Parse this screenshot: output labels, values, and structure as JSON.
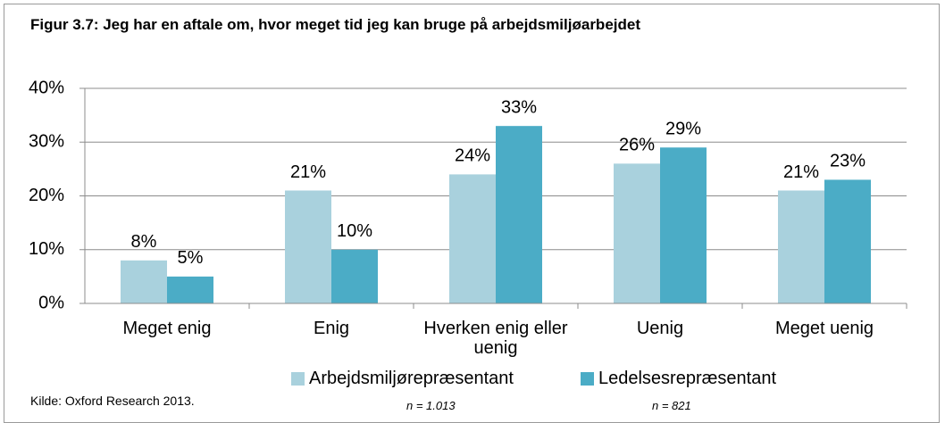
{
  "chart_data": {
    "type": "bar",
    "title": "Figur 3.7: Jeg har en aftale om, hvor meget tid jeg kan bruge på arbejdsmiljøarbejdet",
    "categories": [
      "Meget enig",
      "Enig",
      "Hverken enig eller uenig",
      "Uenig",
      "Meget uenig"
    ],
    "series": [
      {
        "name": "Arbejdsmiljørepræsentant",
        "color": "#a9d1dd",
        "values": [
          8,
          21,
          24,
          26,
          21
        ],
        "value_labels": [
          "8%",
          "21%",
          "24%",
          "26%",
          "21%"
        ]
      },
      {
        "name": "Ledelsesrepræsentant",
        "color": "#4bacc6",
        "values": [
          5,
          10,
          33,
          29,
          23
        ],
        "value_labels": [
          "5%",
          "10%",
          "33%",
          "29%",
          "23%"
        ]
      }
    ],
    "ylim": [
      0,
      40
    ],
    "yticks": [
      {
        "value": 0,
        "label": "0%"
      },
      {
        "value": 10,
        "label": "10%"
      },
      {
        "value": 20,
        "label": "20%"
      },
      {
        "value": 30,
        "label": "30%"
      },
      {
        "value": 40,
        "label": "40%"
      }
    ],
    "grid": true,
    "legend": "bottom",
    "notes": [
      "n = 1.013",
      "n = 821"
    ],
    "source": "Kilde: Oxford Research 2013."
  }
}
